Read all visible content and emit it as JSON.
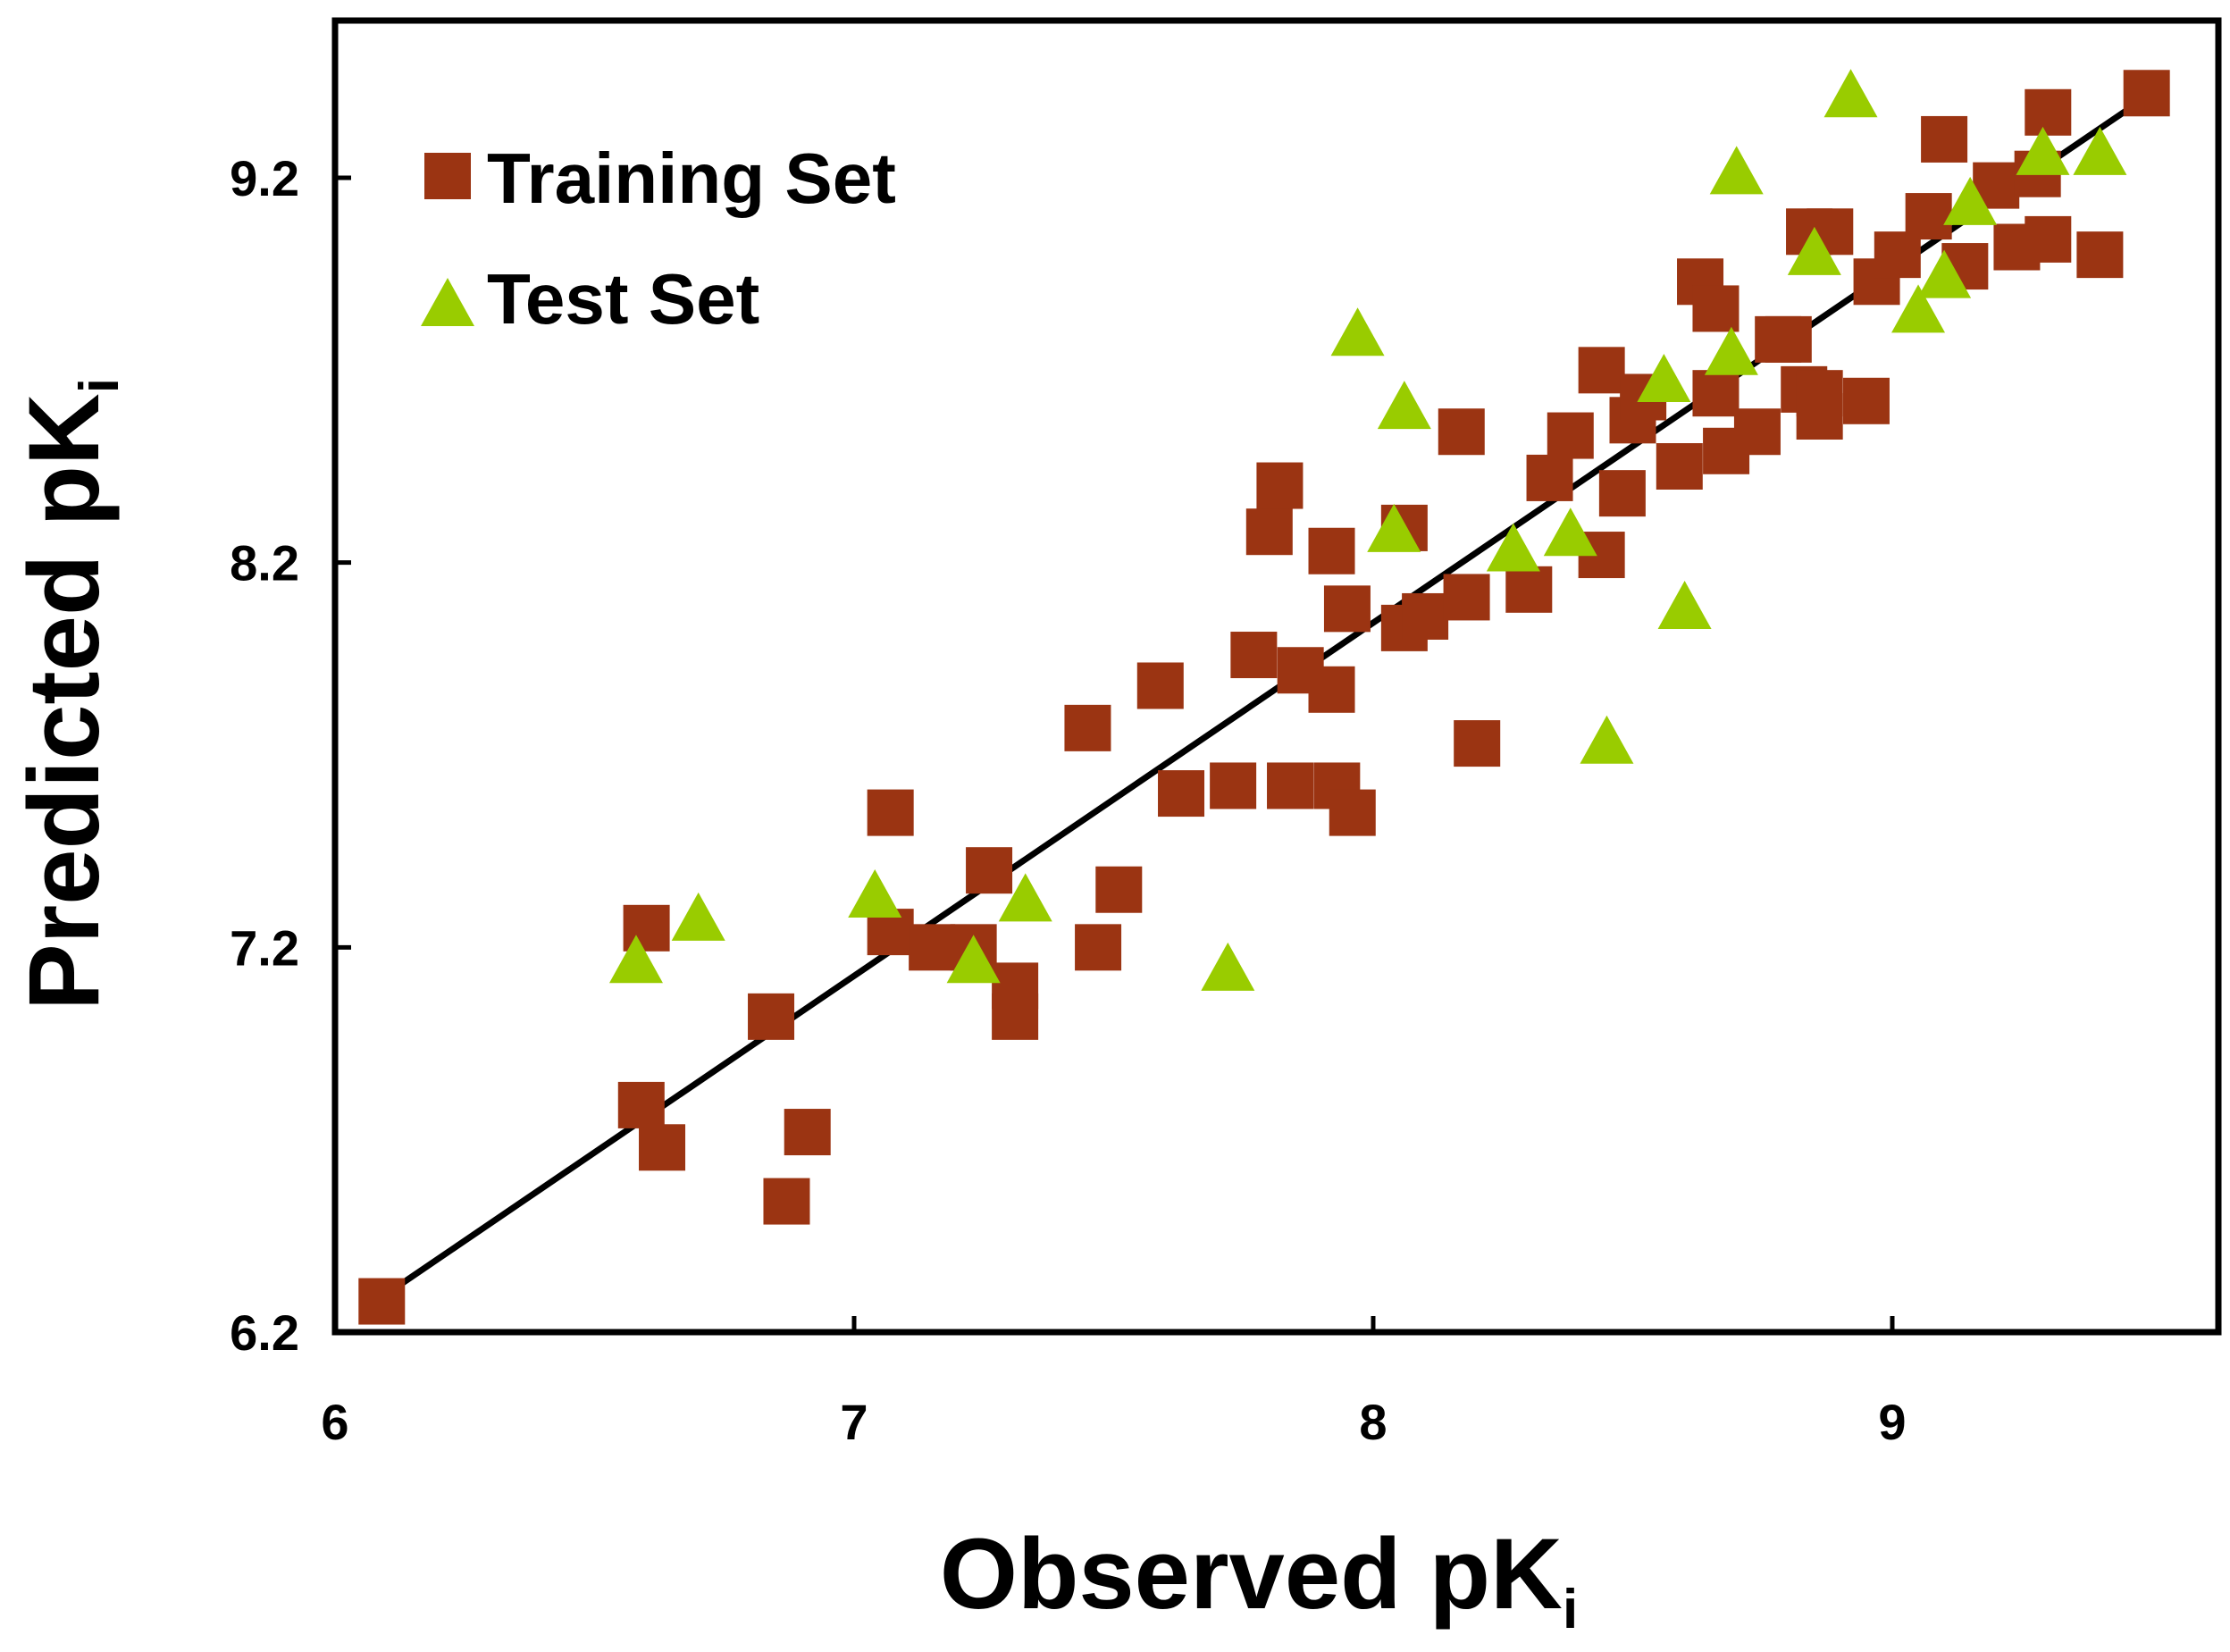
{
  "chart_data": {
    "type": "scatter",
    "xlabel_main": "Observed pK",
    "xlabel_sub": "i",
    "ylabel_main": "Predicted pK",
    "ylabel_sub": "i",
    "xlim": [
      6.0,
      9.6
    ],
    "ylim": [
      6.2,
      9.6
    ],
    "xticks": [
      6,
      7,
      8,
      9
    ],
    "xtick_labels": [
      "6",
      "7",
      "8",
      "9"
    ],
    "yticks": [
      6.2,
      7.2,
      8.2,
      9.2
    ],
    "ytick_labels": [
      "6.2",
      "7.2",
      "8.2",
      "9.2"
    ],
    "legend_position": "top-left",
    "fit_line": {
      "x": [
        6.1,
        9.5
      ],
      "y": [
        6.3,
        9.42
      ]
    },
    "series": [
      {
        "name": "Training Set",
        "marker": "square",
        "color": "#9B3412",
        "points": [
          [
            6.09,
            6.28
          ],
          [
            6.59,
            6.79
          ],
          [
            6.63,
            6.68
          ],
          [
            6.6,
            7.25
          ],
          [
            6.84,
            7.02
          ],
          [
            6.87,
            6.54
          ],
          [
            6.91,
            6.72
          ],
          [
            7.07,
            7.55
          ],
          [
            7.07,
            7.24
          ],
          [
            7.15,
            7.2
          ],
          [
            7.23,
            7.2
          ],
          [
            7.26,
            7.4
          ],
          [
            7.31,
            7.1
          ],
          [
            7.31,
            7.02
          ],
          [
            7.45,
            7.77
          ],
          [
            7.47,
            7.2
          ],
          [
            7.51,
            7.35
          ],
          [
            7.59,
            7.88
          ],
          [
            7.63,
            7.6
          ],
          [
            7.73,
            7.62
          ],
          [
            7.77,
            7.96
          ],
          [
            7.8,
            8.28
          ],
          [
            7.82,
            8.4
          ],
          [
            7.84,
            7.62
          ],
          [
            7.86,
            7.92
          ],
          [
            7.92,
            8.23
          ],
          [
            7.92,
            7.87
          ],
          [
            7.93,
            7.62
          ],
          [
            7.95,
            8.08
          ],
          [
            7.96,
            7.55
          ],
          [
            8.06,
            8.03
          ],
          [
            8.06,
            8.29
          ],
          [
            8.1,
            8.06
          ],
          [
            8.18,
            8.11
          ],
          [
            8.17,
            8.54
          ],
          [
            8.2,
            7.73
          ],
          [
            8.3,
            8.13
          ],
          [
            8.34,
            8.42
          ],
          [
            8.38,
            8.53
          ],
          [
            8.44,
            8.7
          ],
          [
            8.44,
            8.22
          ],
          [
            8.48,
            8.38
          ],
          [
            8.5,
            8.57
          ],
          [
            8.52,
            8.63
          ],
          [
            8.59,
            8.45
          ],
          [
            8.63,
            8.93
          ],
          [
            8.66,
            8.86
          ],
          [
            8.66,
            8.64
          ],
          [
            8.68,
            8.49
          ],
          [
            8.74,
            8.54
          ],
          [
            8.78,
            8.78
          ],
          [
            8.8,
            8.78
          ],
          [
            8.83,
            8.65
          ],
          [
            8.84,
            9.06
          ],
          [
            8.86,
            8.58
          ],
          [
            8.86,
            8.64
          ],
          [
            8.88,
            9.06
          ],
          [
            8.95,
            8.62
          ],
          [
            8.97,
            8.93
          ],
          [
            9.01,
            9.0
          ],
          [
            9.07,
            9.1
          ],
          [
            9.1,
            9.3
          ],
          [
            9.14,
            8.97
          ],
          [
            9.2,
            9.18
          ],
          [
            9.24,
            9.02
          ],
          [
            9.28,
            9.21
          ],
          [
            9.3,
            9.04
          ],
          [
            9.3,
            9.37
          ],
          [
            9.4,
            9.0
          ],
          [
            9.49,
            9.42
          ]
        ]
      },
      {
        "name": "Test Set",
        "marker": "triangle",
        "color": "#99CC00",
        "points": [
          [
            6.58,
            7.17
          ],
          [
            6.7,
            7.28
          ],
          [
            7.04,
            7.34
          ],
          [
            7.23,
            7.17
          ],
          [
            7.33,
            7.33
          ],
          [
            7.72,
            7.15
          ],
          [
            7.97,
            8.8
          ],
          [
            8.04,
            8.29
          ],
          [
            8.06,
            8.61
          ],
          [
            8.27,
            8.24
          ],
          [
            8.38,
            8.28
          ],
          [
            8.45,
            7.74
          ],
          [
            8.56,
            8.68
          ],
          [
            8.6,
            8.09
          ],
          [
            8.69,
            8.75
          ],
          [
            8.7,
            9.22
          ],
          [
            8.85,
            9.01
          ],
          [
            8.92,
            9.42
          ],
          [
            9.05,
            8.86
          ],
          [
            9.1,
            8.95
          ],
          [
            9.15,
            9.14
          ],
          [
            9.29,
            9.27
          ],
          [
            9.4,
            9.27
          ]
        ]
      }
    ]
  }
}
